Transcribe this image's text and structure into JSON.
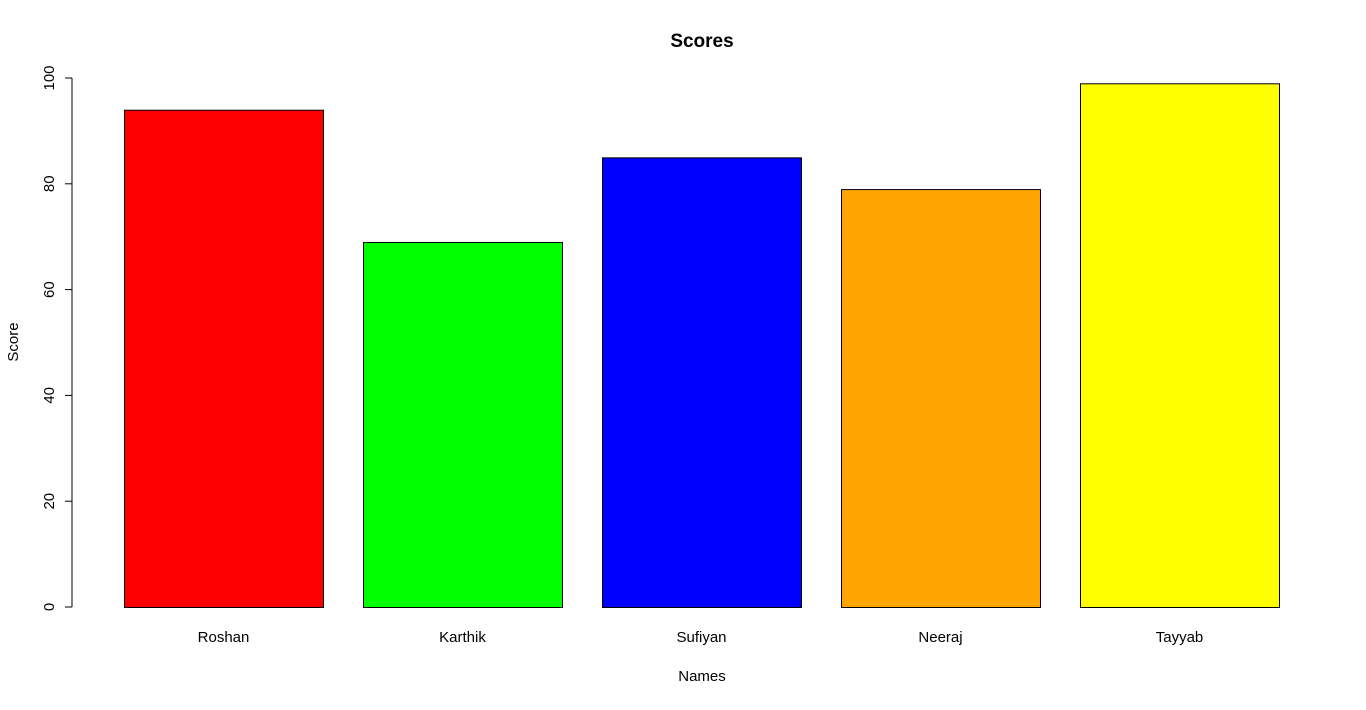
{
  "chart_data": {
    "type": "bar",
    "title": "Scores",
    "xlabel": "Names",
    "ylabel": "Score",
    "categories": [
      "Roshan",
      "Karthik",
      "Sufiyan",
      "Neeraj",
      "Tayyab"
    ],
    "values": [
      94,
      69,
      85,
      79,
      99
    ],
    "colors": [
      "#FF0000",
      "#00FF00",
      "#0000FF",
      "#FFA500",
      "#FFFF00"
    ],
    "ylim": [
      0,
      100
    ],
    "yticks": [
      0,
      20,
      40,
      60,
      80,
      100
    ],
    "grid": false,
    "legend": "none"
  }
}
